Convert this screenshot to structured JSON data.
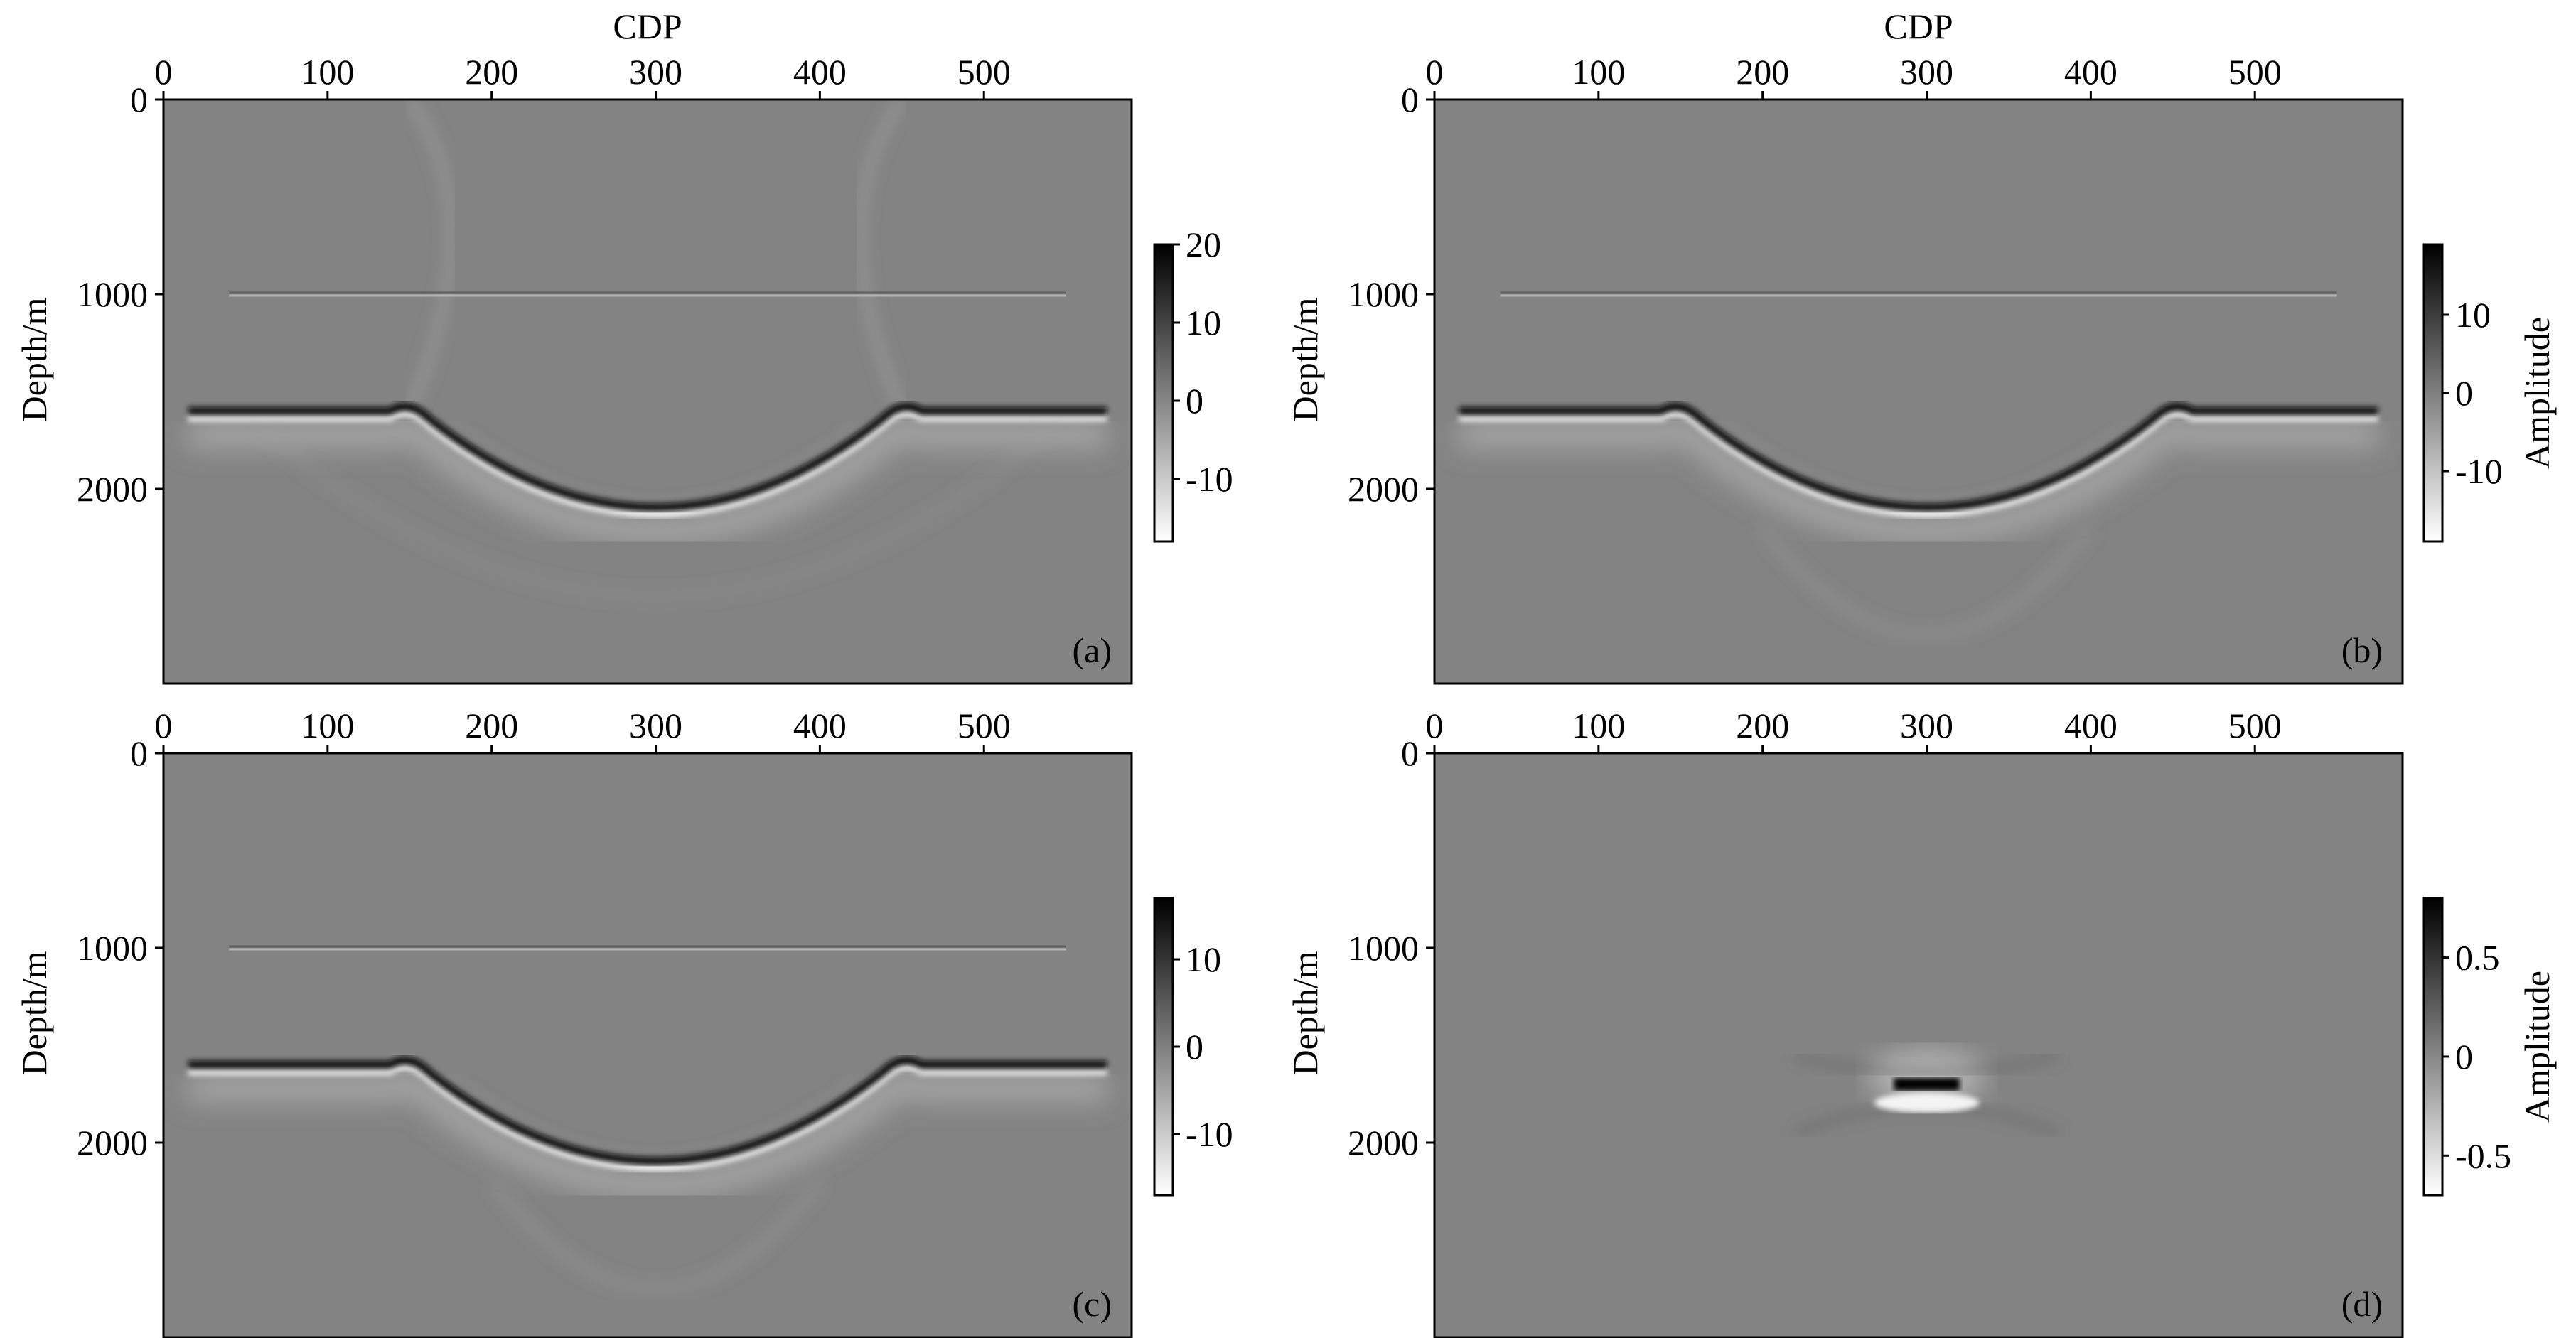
{
  "figure": {
    "gray_background": "#838383",
    "colormap": [
      "#ffffff",
      "#000000"
    ]
  },
  "chart_data": [
    {
      "type": "heatmap",
      "panel_label": "(a)",
      "xlabel": "CDP",
      "ylabel": "Depth/m",
      "x_ticks": [
        0,
        100,
        200,
        300,
        400,
        500
      ],
      "y_ticks": [
        0,
        1000,
        2000
      ],
      "xlim": [
        0,
        590
      ],
      "ylim": [
        0,
        3000
      ],
      "colorbar": {
        "label": "",
        "ticks": [
          "20",
          "10",
          "0",
          "-10"
        ],
        "values": [
          20,
          10,
          0,
          -10
        ],
        "range": [
          -18,
          20
        ]
      },
      "features": {
        "flat_reflector_depth": 1000,
        "horizon_depth": 1600,
        "syncline_left_cdp": 150,
        "syncline_right_cdp": 450,
        "syncline_bottom_depth": 2100,
        "migration_artifacts": "strong"
      }
    },
    {
      "type": "heatmap",
      "panel_label": "(b)",
      "xlabel": "CDP",
      "ylabel": "Depth/m",
      "x_ticks": [
        0,
        100,
        200,
        300,
        400,
        500
      ],
      "y_ticks": [
        0,
        1000,
        2000
      ],
      "xlim": [
        0,
        590
      ],
      "ylim": [
        0,
        3000
      ],
      "colorbar": {
        "label": "Amplitude",
        "ticks": [
          "10",
          "0",
          "-10"
        ],
        "values": [
          10,
          0,
          -10
        ],
        "range": [
          -19,
          19
        ]
      },
      "features": {
        "flat_reflector_depth": 1000,
        "horizon_depth": 1600,
        "syncline_left_cdp": 150,
        "syncline_right_cdp": 450,
        "syncline_bottom_depth": 2100,
        "migration_artifacts": "weak"
      }
    },
    {
      "type": "heatmap",
      "panel_label": "(c)",
      "xlabel": "",
      "ylabel": "Depth/m",
      "x_ticks": [
        0,
        100,
        200,
        300,
        400,
        500
      ],
      "y_ticks": [
        0,
        1000,
        2000
      ],
      "xlim": [
        0,
        590
      ],
      "ylim": [
        0,
        3000
      ],
      "colorbar": {
        "label": "",
        "ticks": [
          "10",
          "0",
          "-10"
        ],
        "values": [
          10,
          0,
          -10
        ],
        "range": [
          -17,
          17
        ]
      },
      "features": {
        "flat_reflector_depth": 1000,
        "horizon_depth": 1600,
        "syncline_left_cdp": 150,
        "syncline_right_cdp": 450,
        "syncline_bottom_depth": 2100,
        "migration_artifacts": "weak"
      }
    },
    {
      "type": "heatmap",
      "panel_label": "(d)",
      "xlabel": "",
      "ylabel": "Depth/m",
      "x_ticks": [
        0,
        100,
        200,
        300,
        400,
        500
      ],
      "y_ticks": [
        0,
        1000,
        2000
      ],
      "xlim": [
        0,
        590
      ],
      "ylim": [
        0,
        3000
      ],
      "colorbar": {
        "label": "Amplitude",
        "ticks": [
          "0.5",
          "0",
          "-0.5"
        ],
        "values": [
          0.5,
          0,
          -0.5
        ],
        "range": [
          -0.7,
          0.8
        ]
      },
      "features": {
        "difference_event_cdp": 300,
        "difference_event_depth": 1700,
        "difference_event_halfwidth_cdp": 20
      }
    }
  ]
}
